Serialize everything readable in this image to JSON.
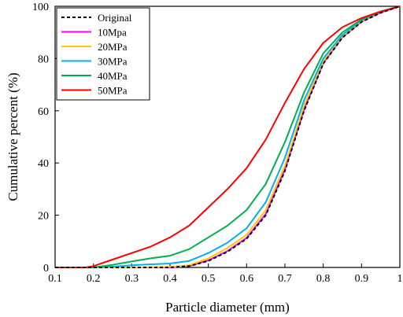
{
  "chart_data": {
    "type": "line",
    "title": "",
    "xlabel": "Particle diameter (mm)",
    "ylabel": "Cumulative percent    (%)",
    "xlim": [
      0.1,
      1.0
    ],
    "ylim": [
      0,
      100
    ],
    "xticks": [
      "0.1",
      "0.2",
      "0.3",
      "0.4",
      "0.5",
      "0.6",
      "0.7",
      "0.8",
      "0.9",
      "1"
    ],
    "yticks": [
      "0",
      "20",
      "40",
      "60",
      "80",
      "100"
    ],
    "grid": false,
    "legend_position": "top-left",
    "series": [
      {
        "name": "Original",
        "color": "#000000",
        "dash": true,
        "points": [
          [
            0.1,
            0
          ],
          [
            0.2,
            0
          ],
          [
            0.3,
            0
          ],
          [
            0.4,
            0
          ],
          [
            0.45,
            0.5
          ],
          [
            0.5,
            2.5
          ],
          [
            0.55,
            6
          ],
          [
            0.6,
            11
          ],
          [
            0.65,
            20
          ],
          [
            0.7,
            37
          ],
          [
            0.75,
            60
          ],
          [
            0.8,
            78
          ],
          [
            0.85,
            88
          ],
          [
            0.9,
            94
          ],
          [
            0.95,
            97.5
          ],
          [
            1.0,
            100
          ]
        ]
      },
      {
        "name": "10Mpa",
        "color": "#ff00ff",
        "dash": false,
        "points": [
          [
            0.1,
            0
          ],
          [
            0.2,
            0
          ],
          [
            0.3,
            0
          ],
          [
            0.4,
            0
          ],
          [
            0.45,
            0.5
          ],
          [
            0.5,
            2.7
          ],
          [
            0.55,
            6.3
          ],
          [
            0.6,
            11.3
          ],
          [
            0.65,
            20.5
          ],
          [
            0.7,
            37.5
          ],
          [
            0.75,
            60.5
          ],
          [
            0.8,
            78.3
          ],
          [
            0.85,
            88.2
          ],
          [
            0.9,
            94.2
          ],
          [
            0.95,
            97.6
          ],
          [
            1.0,
            100
          ]
        ]
      },
      {
        "name": "20MPa",
        "color": "#ffcc00",
        "dash": false,
        "points": [
          [
            0.1,
            0
          ],
          [
            0.2,
            0
          ],
          [
            0.3,
            0
          ],
          [
            0.4,
            0.2
          ],
          [
            0.45,
            0.8
          ],
          [
            0.5,
            3.5
          ],
          [
            0.55,
            7.5
          ],
          [
            0.6,
            12.5
          ],
          [
            0.65,
            22
          ],
          [
            0.7,
            39
          ],
          [
            0.75,
            62
          ],
          [
            0.8,
            79
          ],
          [
            0.85,
            88.5
          ],
          [
            0.9,
            94.5
          ],
          [
            0.95,
            97.7
          ],
          [
            1.0,
            100
          ]
        ]
      },
      {
        "name": "30MPa",
        "color": "#00b0f0",
        "dash": false,
        "points": [
          [
            0.1,
            0
          ],
          [
            0.2,
            0
          ],
          [
            0.25,
            0.3
          ],
          [
            0.3,
            0.8
          ],
          [
            0.35,
            1.2
          ],
          [
            0.4,
            1.5
          ],
          [
            0.45,
            2.5
          ],
          [
            0.5,
            5.5
          ],
          [
            0.55,
            9.5
          ],
          [
            0.6,
            15
          ],
          [
            0.65,
            25
          ],
          [
            0.7,
            42
          ],
          [
            0.75,
            64
          ],
          [
            0.8,
            80
          ],
          [
            0.85,
            89
          ],
          [
            0.9,
            94.8
          ],
          [
            0.95,
            97.8
          ],
          [
            1.0,
            100
          ]
        ]
      },
      {
        "name": "40MPa",
        "color": "#00b050",
        "dash": false,
        "points": [
          [
            0.1,
            0
          ],
          [
            0.2,
            0
          ],
          [
            0.25,
            1
          ],
          [
            0.3,
            2.3
          ],
          [
            0.35,
            3.5
          ],
          [
            0.4,
            4.5
          ],
          [
            0.45,
            7
          ],
          [
            0.5,
            11.5
          ],
          [
            0.55,
            16
          ],
          [
            0.6,
            22
          ],
          [
            0.65,
            32
          ],
          [
            0.7,
            48
          ],
          [
            0.75,
            67
          ],
          [
            0.8,
            82
          ],
          [
            0.85,
            90
          ],
          [
            0.9,
            95
          ],
          [
            0.95,
            98
          ],
          [
            1.0,
            100
          ]
        ]
      },
      {
        "name": "50MPa",
        "color": "#ff0000",
        "dash": false,
        "points": [
          [
            0.1,
            0
          ],
          [
            0.18,
            0
          ],
          [
            0.2,
            0.5
          ],
          [
            0.25,
            3
          ],
          [
            0.3,
            5.5
          ],
          [
            0.35,
            8
          ],
          [
            0.4,
            11.5
          ],
          [
            0.45,
            16
          ],
          [
            0.5,
            23
          ],
          [
            0.55,
            30
          ],
          [
            0.6,
            38
          ],
          [
            0.65,
            49
          ],
          [
            0.7,
            63
          ],
          [
            0.75,
            76
          ],
          [
            0.8,
            86
          ],
          [
            0.85,
            92
          ],
          [
            0.9,
            95.5
          ],
          [
            0.95,
            98
          ],
          [
            1.0,
            100
          ]
        ]
      }
    ]
  }
}
